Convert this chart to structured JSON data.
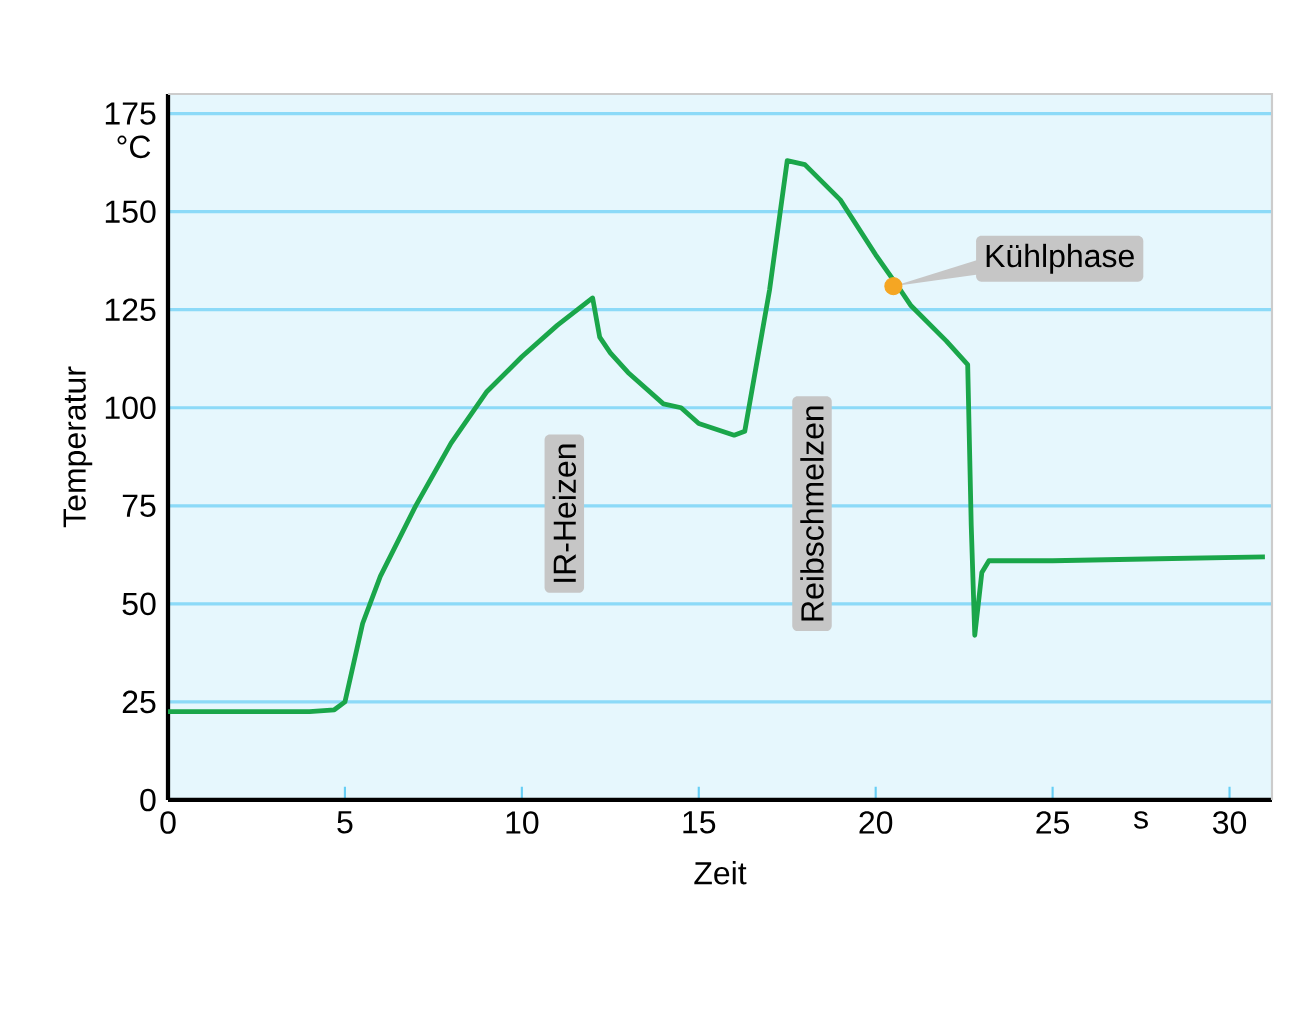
{
  "chart_data": {
    "type": "line",
    "xlabel": "Zeit",
    "ylabel": "Temperatur",
    "xlim": [
      0,
      31.2
    ],
    "ylim": [
      0,
      180
    ],
    "xticks": [
      0,
      5,
      10,
      15,
      20,
      25,
      30
    ],
    "yticks": [
      0,
      25,
      50,
      75,
      100,
      125,
      150,
      175
    ],
    "grid": "y",
    "marker": "none",
    "line_style": "solid",
    "series": [
      {
        "color": "#1aa64a",
        "x": [
          0,
          1,
          2,
          3,
          4,
          4.7,
          5,
          5.5,
          6,
          7,
          8,
          9,
          10,
          11,
          12,
          12.2,
          12.5,
          13,
          14,
          14.5,
          15,
          16,
          16.3,
          17,
          17.5,
          18,
          19,
          20,
          20.7,
          21,
          22,
          22.6,
          22.7,
          22.8,
          23,
          23.2,
          25,
          28,
          31
        ],
        "values": [
          22.5,
          22.5,
          22.5,
          22.5,
          22.5,
          23,
          25,
          45,
          57,
          75,
          91,
          104,
          113,
          121,
          128,
          118,
          114,
          109,
          101,
          100,
          96,
          93,
          94,
          130,
          163,
          162,
          153,
          139,
          130,
          126,
          117,
          111,
          70,
          42,
          58,
          61,
          61,
          61.5,
          62
        ]
      },
      {
        "type": "scatter",
        "color": "#f5a623",
        "marker": "circle",
        "x": [
          20.5
        ],
        "values": [
          131
        ]
      }
    ],
    "annotations": [
      "IR-Heizen",
      "Reibschmelzen",
      "°C",
      "s",
      {
        "text": "Kühlphase",
        "x": 20.5,
        "y": 131
      }
    ]
  }
}
